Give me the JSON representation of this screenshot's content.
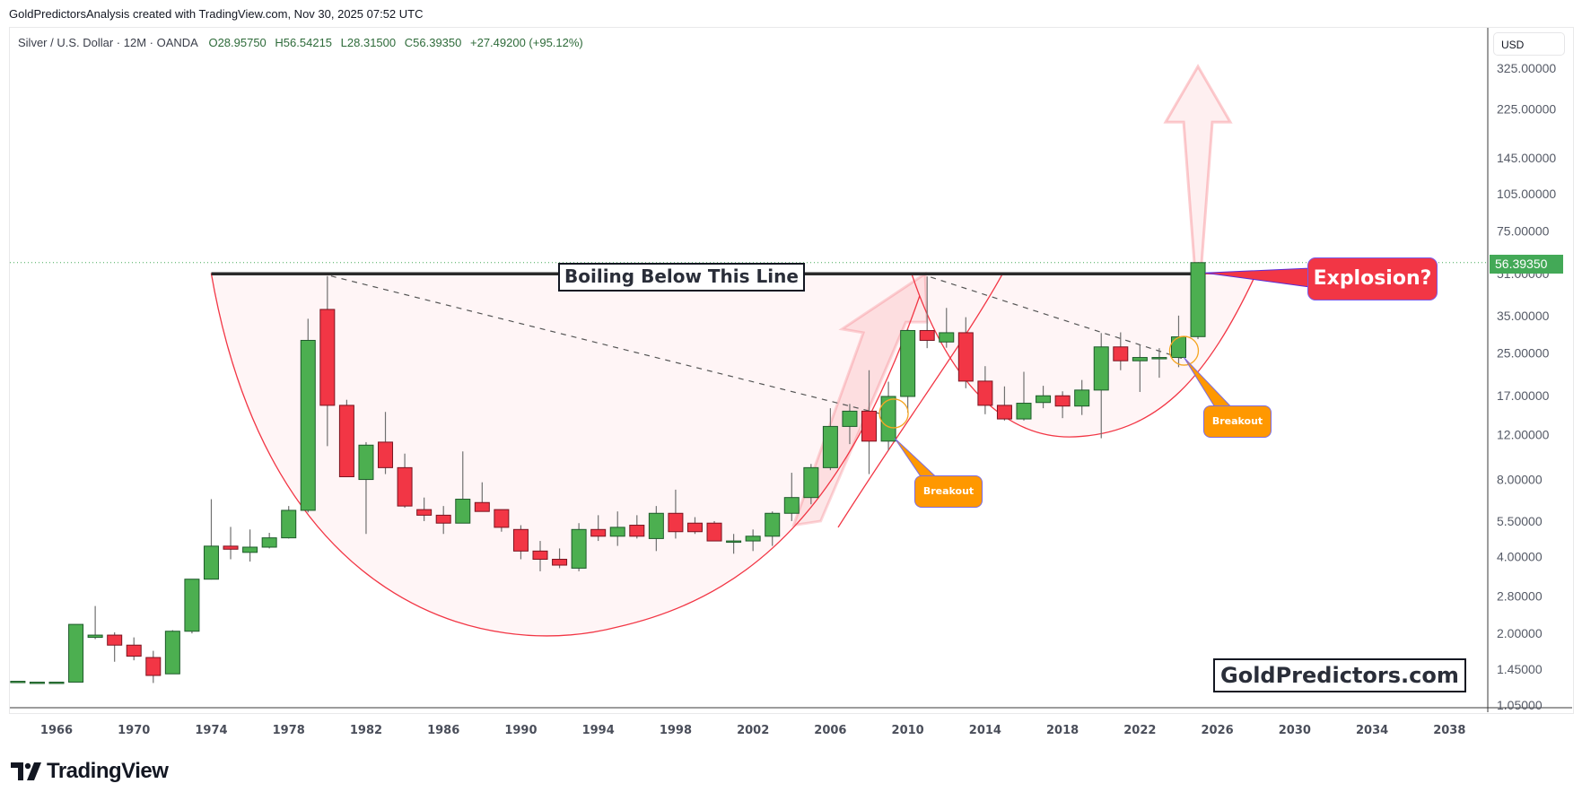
{
  "header": {
    "credit": "GoldPredictorsAnalysis created with TradingView.com, Nov 30, 2025 07:52 UTC"
  },
  "legend": {
    "symbol": "Silver / U.S. Dollar · 12M · OANDA",
    "open": "O28.95750",
    "high": "H56.54215",
    "low": "L28.31500",
    "close": "C56.39350",
    "change": "+27.49200 (+95.12%)"
  },
  "price_axis": {
    "currency": "USD",
    "last_price": "56.39350",
    "last_price_color": "#43a957",
    "ticks": [
      "325.00000",
      "225.00000",
      "145.00000",
      "105.00000",
      "75.00000",
      "51.00000",
      "35.00000",
      "25.00000",
      "17.00000",
      "12.00000",
      "8.00000",
      "5.50000",
      "4.00000",
      "2.80000",
      "2.00000",
      "1.45000",
      "1.05000"
    ]
  },
  "time_axis": {
    "ticks": [
      "1966",
      "1970",
      "1974",
      "1978",
      "1982",
      "1986",
      "1990",
      "1994",
      "1998",
      "2002",
      "2006",
      "2010",
      "2014",
      "2018",
      "2022",
      "2026",
      "2030",
      "2034",
      "2038"
    ]
  },
  "annotations": {
    "resistance_label": "Boiling Below This Line",
    "explosion_label": "Explosion?",
    "breakout_1": "Breakout",
    "breakout_2": "Breakout",
    "watermark": "GoldPredictors.com"
  },
  "colors": {
    "up": "#4caf50",
    "down": "#f23645",
    "cup_fill": "#fff5f6",
    "cup_line": "#f23645",
    "callout_orange": "#ff9800"
  },
  "footer": {
    "brand": "TradingView"
  },
  "chart_data": {
    "type": "candlestick",
    "title": "Silver / U.S. Dollar · 12M · OANDA",
    "xlabel": "",
    "ylabel": "USD (log scale)",
    "ylim": [
      1.0,
      400
    ],
    "y_scale": "log",
    "grid": false,
    "candles": [
      {
        "year": 1964,
        "o": 1.29,
        "h": 1.3,
        "l": 1.28,
        "c": 1.3
      },
      {
        "year": 1965,
        "o": 1.29,
        "h": 1.29,
        "l": 1.29,
        "c": 1.29
      },
      {
        "year": 1966,
        "o": 1.29,
        "h": 1.29,
        "l": 1.29,
        "c": 1.29
      },
      {
        "year": 1967,
        "o": 1.29,
        "h": 2.17,
        "l": 1.29,
        "c": 2.17
      },
      {
        "year": 1968,
        "o": 1.93,
        "h": 2.56,
        "l": 1.9,
        "c": 1.97
      },
      {
        "year": 1969,
        "o": 1.97,
        "h": 2.02,
        "l": 1.55,
        "c": 1.8
      },
      {
        "year": 1970,
        "o": 1.8,
        "h": 1.93,
        "l": 1.57,
        "c": 1.63
      },
      {
        "year": 1971,
        "o": 1.61,
        "h": 1.71,
        "l": 1.28,
        "c": 1.37
      },
      {
        "year": 1972,
        "o": 1.39,
        "h": 2.06,
        "l": 1.39,
        "c": 2.04
      },
      {
        "year": 1973,
        "o": 2.04,
        "h": 3.26,
        "l": 2.0,
        "c": 3.26
      },
      {
        "year": 1974,
        "o": 3.26,
        "h": 6.7,
        "l": 3.25,
        "c": 4.39
      },
      {
        "year": 1975,
        "o": 4.39,
        "h": 5.22,
        "l": 3.9,
        "c": 4.27
      },
      {
        "year": 1976,
        "o": 4.15,
        "h": 5.1,
        "l": 3.82,
        "c": 4.35
      },
      {
        "year": 1977,
        "o": 4.35,
        "h": 4.95,
        "l": 4.3,
        "c": 4.73
      },
      {
        "year": 1978,
        "o": 4.73,
        "h": 6.3,
        "l": 4.7,
        "c": 6.06
      },
      {
        "year": 1979,
        "o": 6.06,
        "h": 34.0,
        "l": 5.95,
        "c": 28.0
      },
      {
        "year": 1980,
        "o": 37.0,
        "h": 50.0,
        "l": 10.8,
        "c": 15.6
      },
      {
        "year": 1981,
        "o": 15.6,
        "h": 16.4,
        "l": 8.2,
        "c": 8.2
      },
      {
        "year": 1982,
        "o": 8.0,
        "h": 11.2,
        "l": 4.9,
        "c": 10.9
      },
      {
        "year": 1983,
        "o": 11.2,
        "h": 14.7,
        "l": 8.4,
        "c": 8.9
      },
      {
        "year": 1984,
        "o": 8.9,
        "h": 10.1,
        "l": 6.2,
        "c": 6.3
      },
      {
        "year": 1985,
        "o": 6.1,
        "h": 6.8,
        "l": 5.5,
        "c": 5.8
      },
      {
        "year": 1986,
        "o": 5.8,
        "h": 6.3,
        "l": 4.9,
        "c": 5.4
      },
      {
        "year": 1987,
        "o": 5.4,
        "h": 10.3,
        "l": 5.4,
        "c": 6.7
      },
      {
        "year": 1988,
        "o": 6.5,
        "h": 7.8,
        "l": 6.0,
        "c": 6.0
      },
      {
        "year": 1989,
        "o": 6.1,
        "h": 6.1,
        "l": 5.0,
        "c": 5.2
      },
      {
        "year": 1990,
        "o": 5.1,
        "h": 5.3,
        "l": 3.9,
        "c": 4.2
      },
      {
        "year": 1991,
        "o": 4.2,
        "h": 4.6,
        "l": 3.5,
        "c": 3.9
      },
      {
        "year": 1992,
        "o": 3.9,
        "h": 4.3,
        "l": 3.6,
        "c": 3.7
      },
      {
        "year": 1993,
        "o": 3.6,
        "h": 5.4,
        "l": 3.5,
        "c": 5.1
      },
      {
        "year": 1994,
        "o": 5.1,
        "h": 5.8,
        "l": 4.6,
        "c": 4.8
      },
      {
        "year": 1995,
        "o": 4.8,
        "h": 6.0,
        "l": 4.4,
        "c": 5.2
      },
      {
        "year": 1996,
        "o": 5.3,
        "h": 5.8,
        "l": 4.7,
        "c": 4.8
      },
      {
        "year": 1997,
        "o": 4.7,
        "h": 6.3,
        "l": 4.2,
        "c": 5.9
      },
      {
        "year": 1998,
        "o": 5.9,
        "h": 7.3,
        "l": 4.7,
        "c": 5.0
      },
      {
        "year": 1999,
        "o": 5.4,
        "h": 5.7,
        "l": 4.9,
        "c": 5.0
      },
      {
        "year": 2000,
        "o": 5.4,
        "h": 5.5,
        "l": 4.6,
        "c": 4.6
      },
      {
        "year": 2001,
        "o": 4.6,
        "h": 4.9,
        "l": 4.1,
        "c": 4.6
      },
      {
        "year": 2002,
        "o": 4.6,
        "h": 5.1,
        "l": 4.2,
        "c": 4.8
      },
      {
        "year": 2003,
        "o": 4.8,
        "h": 6.0,
        "l": 4.4,
        "c": 5.9
      },
      {
        "year": 2004,
        "o": 5.9,
        "h": 8.5,
        "l": 5.5,
        "c": 6.8
      },
      {
        "year": 2005,
        "o": 6.8,
        "h": 9.2,
        "l": 6.4,
        "c": 8.9
      },
      {
        "year": 2006,
        "o": 8.9,
        "h": 15.2,
        "l": 8.7,
        "c": 12.9
      },
      {
        "year": 2007,
        "o": 12.9,
        "h": 15.8,
        "l": 11.0,
        "c": 14.8
      },
      {
        "year": 2008,
        "o": 14.8,
        "h": 21.4,
        "l": 8.4,
        "c": 11.3
      },
      {
        "year": 2009,
        "o": 11.3,
        "h": 19.3,
        "l": 10.4,
        "c": 16.9
      },
      {
        "year": 2010,
        "o": 16.9,
        "h": 31.0,
        "l": 14.6,
        "c": 30.6
      },
      {
        "year": 2011,
        "o": 30.6,
        "h": 49.8,
        "l": 26.1,
        "c": 28.0
      },
      {
        "year": 2012,
        "o": 27.6,
        "h": 37.5,
        "l": 26.2,
        "c": 30.0
      },
      {
        "year": 2013,
        "o": 30.0,
        "h": 34.5,
        "l": 18.2,
        "c": 19.4
      },
      {
        "year": 2014,
        "o": 19.4,
        "h": 22.2,
        "l": 14.4,
        "c": 15.6
      },
      {
        "year": 2015,
        "o": 15.6,
        "h": 18.5,
        "l": 13.6,
        "c": 13.8
      },
      {
        "year": 2016,
        "o": 13.8,
        "h": 21.1,
        "l": 13.6,
        "c": 15.9
      },
      {
        "year": 2017,
        "o": 16.0,
        "h": 18.6,
        "l": 15.2,
        "c": 17.0
      },
      {
        "year": 2018,
        "o": 17.0,
        "h": 17.7,
        "l": 13.9,
        "c": 15.5
      },
      {
        "year": 2019,
        "o": 15.5,
        "h": 19.6,
        "l": 14.3,
        "c": 17.9
      },
      {
        "year": 2020,
        "o": 17.9,
        "h": 29.9,
        "l": 11.6,
        "c": 26.4
      },
      {
        "year": 2021,
        "o": 26.4,
        "h": 30.1,
        "l": 21.4,
        "c": 23.3
      },
      {
        "year": 2022,
        "o": 23.3,
        "h": 26.9,
        "l": 17.6,
        "c": 24.0
      },
      {
        "year": 2023,
        "o": 24.0,
        "h": 26.1,
        "l": 20.0,
        "c": 24.0
      },
      {
        "year": 2024,
        "o": 24.0,
        "h": 35.0,
        "l": 22.0,
        "c": 28.9
      },
      {
        "year": 2025,
        "o": 28.96,
        "h": 56.54,
        "l": 28.32,
        "c": 56.39
      }
    ],
    "annotations": [
      {
        "type": "horizontal_line",
        "price": 51,
        "from": 1974,
        "label": "Boiling Below This Line"
      },
      {
        "type": "arc",
        "name": "cup_1",
        "from_year": 1974,
        "to_year": 2011,
        "bottom_year": 1995,
        "bottom_price": 2.15
      },
      {
        "type": "arc",
        "name": "cup_2",
        "from_year": 2011,
        "to_year": 2028,
        "bottom_year": 2019,
        "bottom_price": 11.8
      },
      {
        "type": "arc",
        "name": "handle_arc",
        "from_year": 2009,
        "to_year": 2015
      },
      {
        "type": "trendline",
        "style": "dashed",
        "from": [
          1980,
          50
        ],
        "to": [
          2009,
          15.2
        ]
      },
      {
        "type": "trendline",
        "style": "dashed",
        "from": [
          2011,
          49.8
        ],
        "to": [
          2024,
          24.5
        ]
      },
      {
        "type": "callout",
        "label": "Breakout",
        "at": [
          2009,
          14
        ]
      },
      {
        "type": "callout",
        "label": "Breakout",
        "at": [
          2024,
          24.5
        ]
      },
      {
        "type": "callout",
        "label": "Explosion?",
        "at": [
          2025,
          51
        ]
      },
      {
        "type": "arrow",
        "direction": "up",
        "from": [
          2025,
          56
        ],
        "to": [
          2025,
          330
        ]
      }
    ],
    "last_price": 56.3935
  }
}
